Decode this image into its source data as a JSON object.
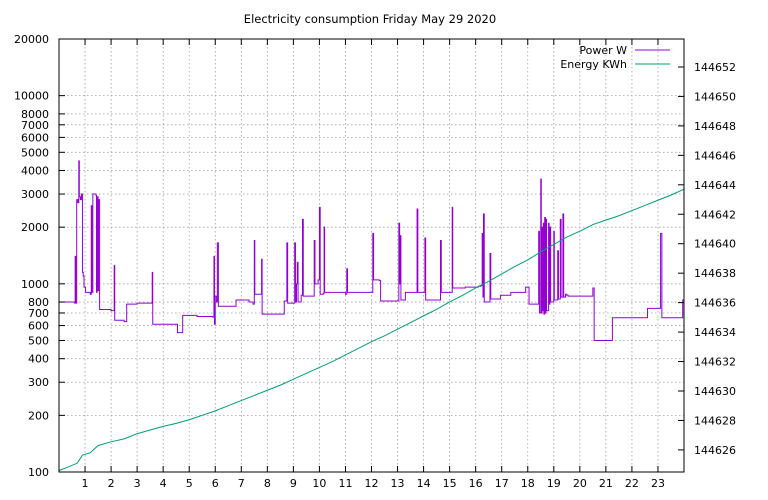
{
  "chart_data": {
    "type": "line",
    "title": "Electricity consumption Friday May 29 2020",
    "xlabel": "",
    "ylabel": "",
    "y2label": "",
    "xlim": [
      0,
      24
    ],
    "ylim": [
      100,
      20000
    ],
    "yscale": "log",
    "y2lim": [
      144624.5,
      144653.9
    ],
    "grid": true,
    "legend_position": "top-right",
    "x_ticks": [
      1,
      2,
      3,
      4,
      5,
      6,
      7,
      8,
      9,
      10,
      11,
      12,
      13,
      14,
      15,
      16,
      17,
      18,
      19,
      20,
      21,
      22,
      23
    ],
    "y_ticks": [
      {
        "value": 100,
        "label": "100"
      },
      {
        "value": 200,
        "label": "200"
      },
      {
        "value": 300,
        "label": "300"
      },
      {
        "value": 400,
        "label": "400"
      },
      {
        "value": 500,
        "label": "500"
      },
      {
        "value": 600,
        "label": "600"
      },
      {
        "value": 700,
        "label": "700"
      },
      {
        "value": 800,
        "label": "800"
      },
      {
        "value": 1000,
        "label": "1000"
      },
      {
        "value": 2000,
        "label": "2000"
      },
      {
        "value": 3000,
        "label": "3000"
      },
      {
        "value": 4000,
        "label": "4000"
      },
      {
        "value": 5000,
        "label": "5000"
      },
      {
        "value": 6000,
        "label": "6000"
      },
      {
        "value": 7000,
        "label": "7000"
      },
      {
        "value": 8000,
        "label": "8000"
      },
      {
        "value": 10000,
        "label": "10000"
      },
      {
        "value": 20000,
        "label": "20000"
      }
    ],
    "y2_ticks": [
      144626,
      144628,
      144630,
      144632,
      144634,
      144636,
      144638,
      144640,
      144642,
      144644,
      144646,
      144648,
      144650,
      144652
    ],
    "series": [
      {
        "name": "Power W",
        "axis": "y",
        "color": "#9400d3",
        "points": [
          [
            0.0,
            800
          ],
          [
            0.6,
            790
          ],
          [
            0.62,
            1400
          ],
          [
            0.64,
            790
          ],
          [
            0.68,
            2800
          ],
          [
            0.72,
            2700
          ],
          [
            0.76,
            4500
          ],
          [
            0.78,
            2900
          ],
          [
            0.82,
            2800
          ],
          [
            0.86,
            3000
          ],
          [
            0.9,
            1150
          ],
          [
            0.93,
            1100
          ],
          [
            0.96,
            960
          ],
          [
            1.02,
            900
          ],
          [
            1.2,
            880
          ],
          [
            1.24,
            2600
          ],
          [
            1.26,
            900
          ],
          [
            1.3,
            3000
          ],
          [
            1.42,
            2950
          ],
          [
            1.44,
            900
          ],
          [
            1.46,
            2900
          ],
          [
            1.5,
            920
          ],
          [
            1.52,
            2800
          ],
          [
            1.56,
            730
          ],
          [
            2.0,
            720
          ],
          [
            2.1,
            720
          ],
          [
            2.12,
            1250
          ],
          [
            2.14,
            640
          ],
          [
            2.5,
            630
          ],
          [
            2.6,
            780
          ],
          [
            3.0,
            790
          ],
          [
            3.55,
            790
          ],
          [
            3.58,
            1150
          ],
          [
            3.6,
            610
          ],
          [
            4.5,
            610
          ],
          [
            4.55,
            550
          ],
          [
            4.7,
            550
          ],
          [
            4.75,
            680
          ],
          [
            5.2,
            680
          ],
          [
            5.3,
            670
          ],
          [
            5.9,
            665
          ],
          [
            5.95,
            1400
          ],
          [
            5.97,
            610
          ],
          [
            6.0,
            860
          ],
          [
            6.05,
            800
          ],
          [
            6.08,
            1650
          ],
          [
            6.12,
            760
          ],
          [
            6.7,
            760
          ],
          [
            6.8,
            820
          ],
          [
            7.3,
            800
          ],
          [
            7.45,
            780
          ],
          [
            7.5,
            1700
          ],
          [
            7.52,
            880
          ],
          [
            7.75,
            880
          ],
          [
            7.78,
            1350
          ],
          [
            7.8,
            690
          ],
          [
            8.6,
            690
          ],
          [
            8.65,
            810
          ],
          [
            8.75,
            1650
          ],
          [
            8.78,
            790
          ],
          [
            9.0,
            790
          ],
          [
            9.05,
            1650
          ],
          [
            9.08,
            800
          ],
          [
            9.12,
            1000
          ],
          [
            9.15,
            1300
          ],
          [
            9.18,
            800
          ],
          [
            9.3,
            870
          ],
          [
            9.35,
            2200
          ],
          [
            9.38,
            860
          ],
          [
            9.75,
            860
          ],
          [
            9.8,
            1700
          ],
          [
            9.83,
            1000
          ],
          [
            9.95,
            1050
          ],
          [
            10.0,
            2550
          ],
          [
            10.03,
            880
          ],
          [
            10.15,
            890
          ],
          [
            10.18,
            2000
          ],
          [
            10.2,
            900
          ],
          [
            10.95,
            900
          ],
          [
            11.0,
            880
          ],
          [
            11.05,
            1200
          ],
          [
            11.08,
            900
          ],
          [
            12.0,
            900
          ],
          [
            12.05,
            1850
          ],
          [
            12.08,
            1050
          ],
          [
            12.3,
            1040
          ],
          [
            12.35,
            810
          ],
          [
            13.0,
            810
          ],
          [
            13.05,
            2100
          ],
          [
            13.08,
            1000
          ],
          [
            13.1,
            1800
          ],
          [
            13.13,
            820
          ],
          [
            13.3,
            900
          ],
          [
            13.7,
            900
          ],
          [
            13.75,
            2500
          ],
          [
            13.78,
            900
          ],
          [
            14.0,
            900
          ],
          [
            14.05,
            1750
          ],
          [
            14.08,
            820
          ],
          [
            14.6,
            820
          ],
          [
            14.65,
            1700
          ],
          [
            14.68,
            900
          ],
          [
            15.05,
            900
          ],
          [
            15.1,
            2550
          ],
          [
            15.12,
            950
          ],
          [
            15.6,
            960
          ],
          [
            16.1,
            970
          ],
          [
            16.2,
            980
          ],
          [
            16.25,
            1850
          ],
          [
            16.28,
            850
          ],
          [
            16.3,
            2350
          ],
          [
            16.33,
            800
          ],
          [
            16.5,
            800
          ],
          [
            16.55,
            1450
          ],
          [
            16.58,
            830
          ],
          [
            16.9,
            830
          ],
          [
            16.95,
            870
          ],
          [
            17.3,
            870
          ],
          [
            17.35,
            900
          ],
          [
            17.9,
            900
          ],
          [
            17.92,
            960
          ],
          [
            18.0,
            960
          ],
          [
            18.05,
            780
          ],
          [
            18.4,
            780
          ],
          [
            18.42,
            1900
          ],
          [
            18.45,
            700
          ],
          [
            18.5,
            3600
          ],
          [
            18.52,
            700
          ],
          [
            18.55,
            2000
          ],
          [
            18.58,
            720
          ],
          [
            18.6,
            2100
          ],
          [
            18.62,
            690
          ],
          [
            18.65,
            2250
          ],
          [
            18.68,
            700
          ],
          [
            18.7,
            2200
          ],
          [
            18.72,
            720
          ],
          [
            18.8,
            2100
          ],
          [
            18.82,
            780
          ],
          [
            18.85,
            2000
          ],
          [
            18.88,
            800
          ],
          [
            19.0,
            1900
          ],
          [
            19.02,
            820
          ],
          [
            19.15,
            1500
          ],
          [
            19.18,
            830
          ],
          [
            19.25,
            2200
          ],
          [
            19.28,
            850
          ],
          [
            19.35,
            2350
          ],
          [
            19.38,
            850
          ],
          [
            19.45,
            880
          ],
          [
            19.5,
            870
          ],
          [
            19.55,
            860
          ],
          [
            20.45,
            860
          ],
          [
            20.5,
            950
          ],
          [
            20.55,
            500
          ],
          [
            21.2,
            500
          ],
          [
            21.25,
            660
          ],
          [
            22.5,
            660
          ],
          [
            22.6,
            740
          ],
          [
            23.0,
            740
          ],
          [
            23.1,
            1850
          ],
          [
            23.15,
            660
          ],
          [
            23.9,
            660
          ],
          [
            23.95,
            820
          ],
          [
            24.0,
            760
          ]
        ]
      },
      {
        "name": "Energy KWh",
        "axis": "y2",
        "color": "#009e73",
        "points": [
          [
            0.0,
            144624.6
          ],
          [
            0.3,
            144624.8
          ],
          [
            0.7,
            144625.1
          ],
          [
            0.9,
            144625.65
          ],
          [
            1.2,
            144625.8
          ],
          [
            1.5,
            144626.3
          ],
          [
            2.0,
            144626.55
          ],
          [
            2.5,
            144626.75
          ],
          [
            3.0,
            144627.1
          ],
          [
            3.5,
            144627.35
          ],
          [
            4.0,
            144627.6
          ],
          [
            4.5,
            144627.8
          ],
          [
            5.0,
            144628.05
          ],
          [
            5.5,
            144628.35
          ],
          [
            6.0,
            144628.65
          ],
          [
            6.5,
            144629.0
          ],
          [
            7.0,
            144629.35
          ],
          [
            7.5,
            144629.7
          ],
          [
            8.0,
            144630.05
          ],
          [
            8.5,
            144630.4
          ],
          [
            9.0,
            144630.8
          ],
          [
            9.5,
            144631.2
          ],
          [
            10.0,
            144631.6
          ],
          [
            10.5,
            144632.0
          ],
          [
            11.0,
            144632.45
          ],
          [
            11.5,
            144632.9
          ],
          [
            12.0,
            144633.35
          ],
          [
            12.5,
            144633.75
          ],
          [
            13.0,
            144634.2
          ],
          [
            13.5,
            144634.65
          ],
          [
            14.0,
            144635.1
          ],
          [
            14.5,
            144635.55
          ],
          [
            15.0,
            144636.05
          ],
          [
            15.5,
            144636.5
          ],
          [
            16.0,
            144637.0
          ],
          [
            16.5,
            144637.45
          ],
          [
            17.0,
            144637.95
          ],
          [
            17.5,
            144638.45
          ],
          [
            18.0,
            144638.9
          ],
          [
            18.5,
            144639.45
          ],
          [
            19.0,
            144639.95
          ],
          [
            19.5,
            144640.45
          ],
          [
            20.0,
            144640.85
          ],
          [
            20.5,
            144641.3
          ],
          [
            21.0,
            144641.6
          ],
          [
            21.5,
            144641.9
          ],
          [
            22.0,
            144642.25
          ],
          [
            22.5,
            144642.6
          ],
          [
            23.0,
            144642.95
          ],
          [
            23.5,
            144643.3
          ],
          [
            24.0,
            144643.7
          ]
        ]
      }
    ]
  }
}
